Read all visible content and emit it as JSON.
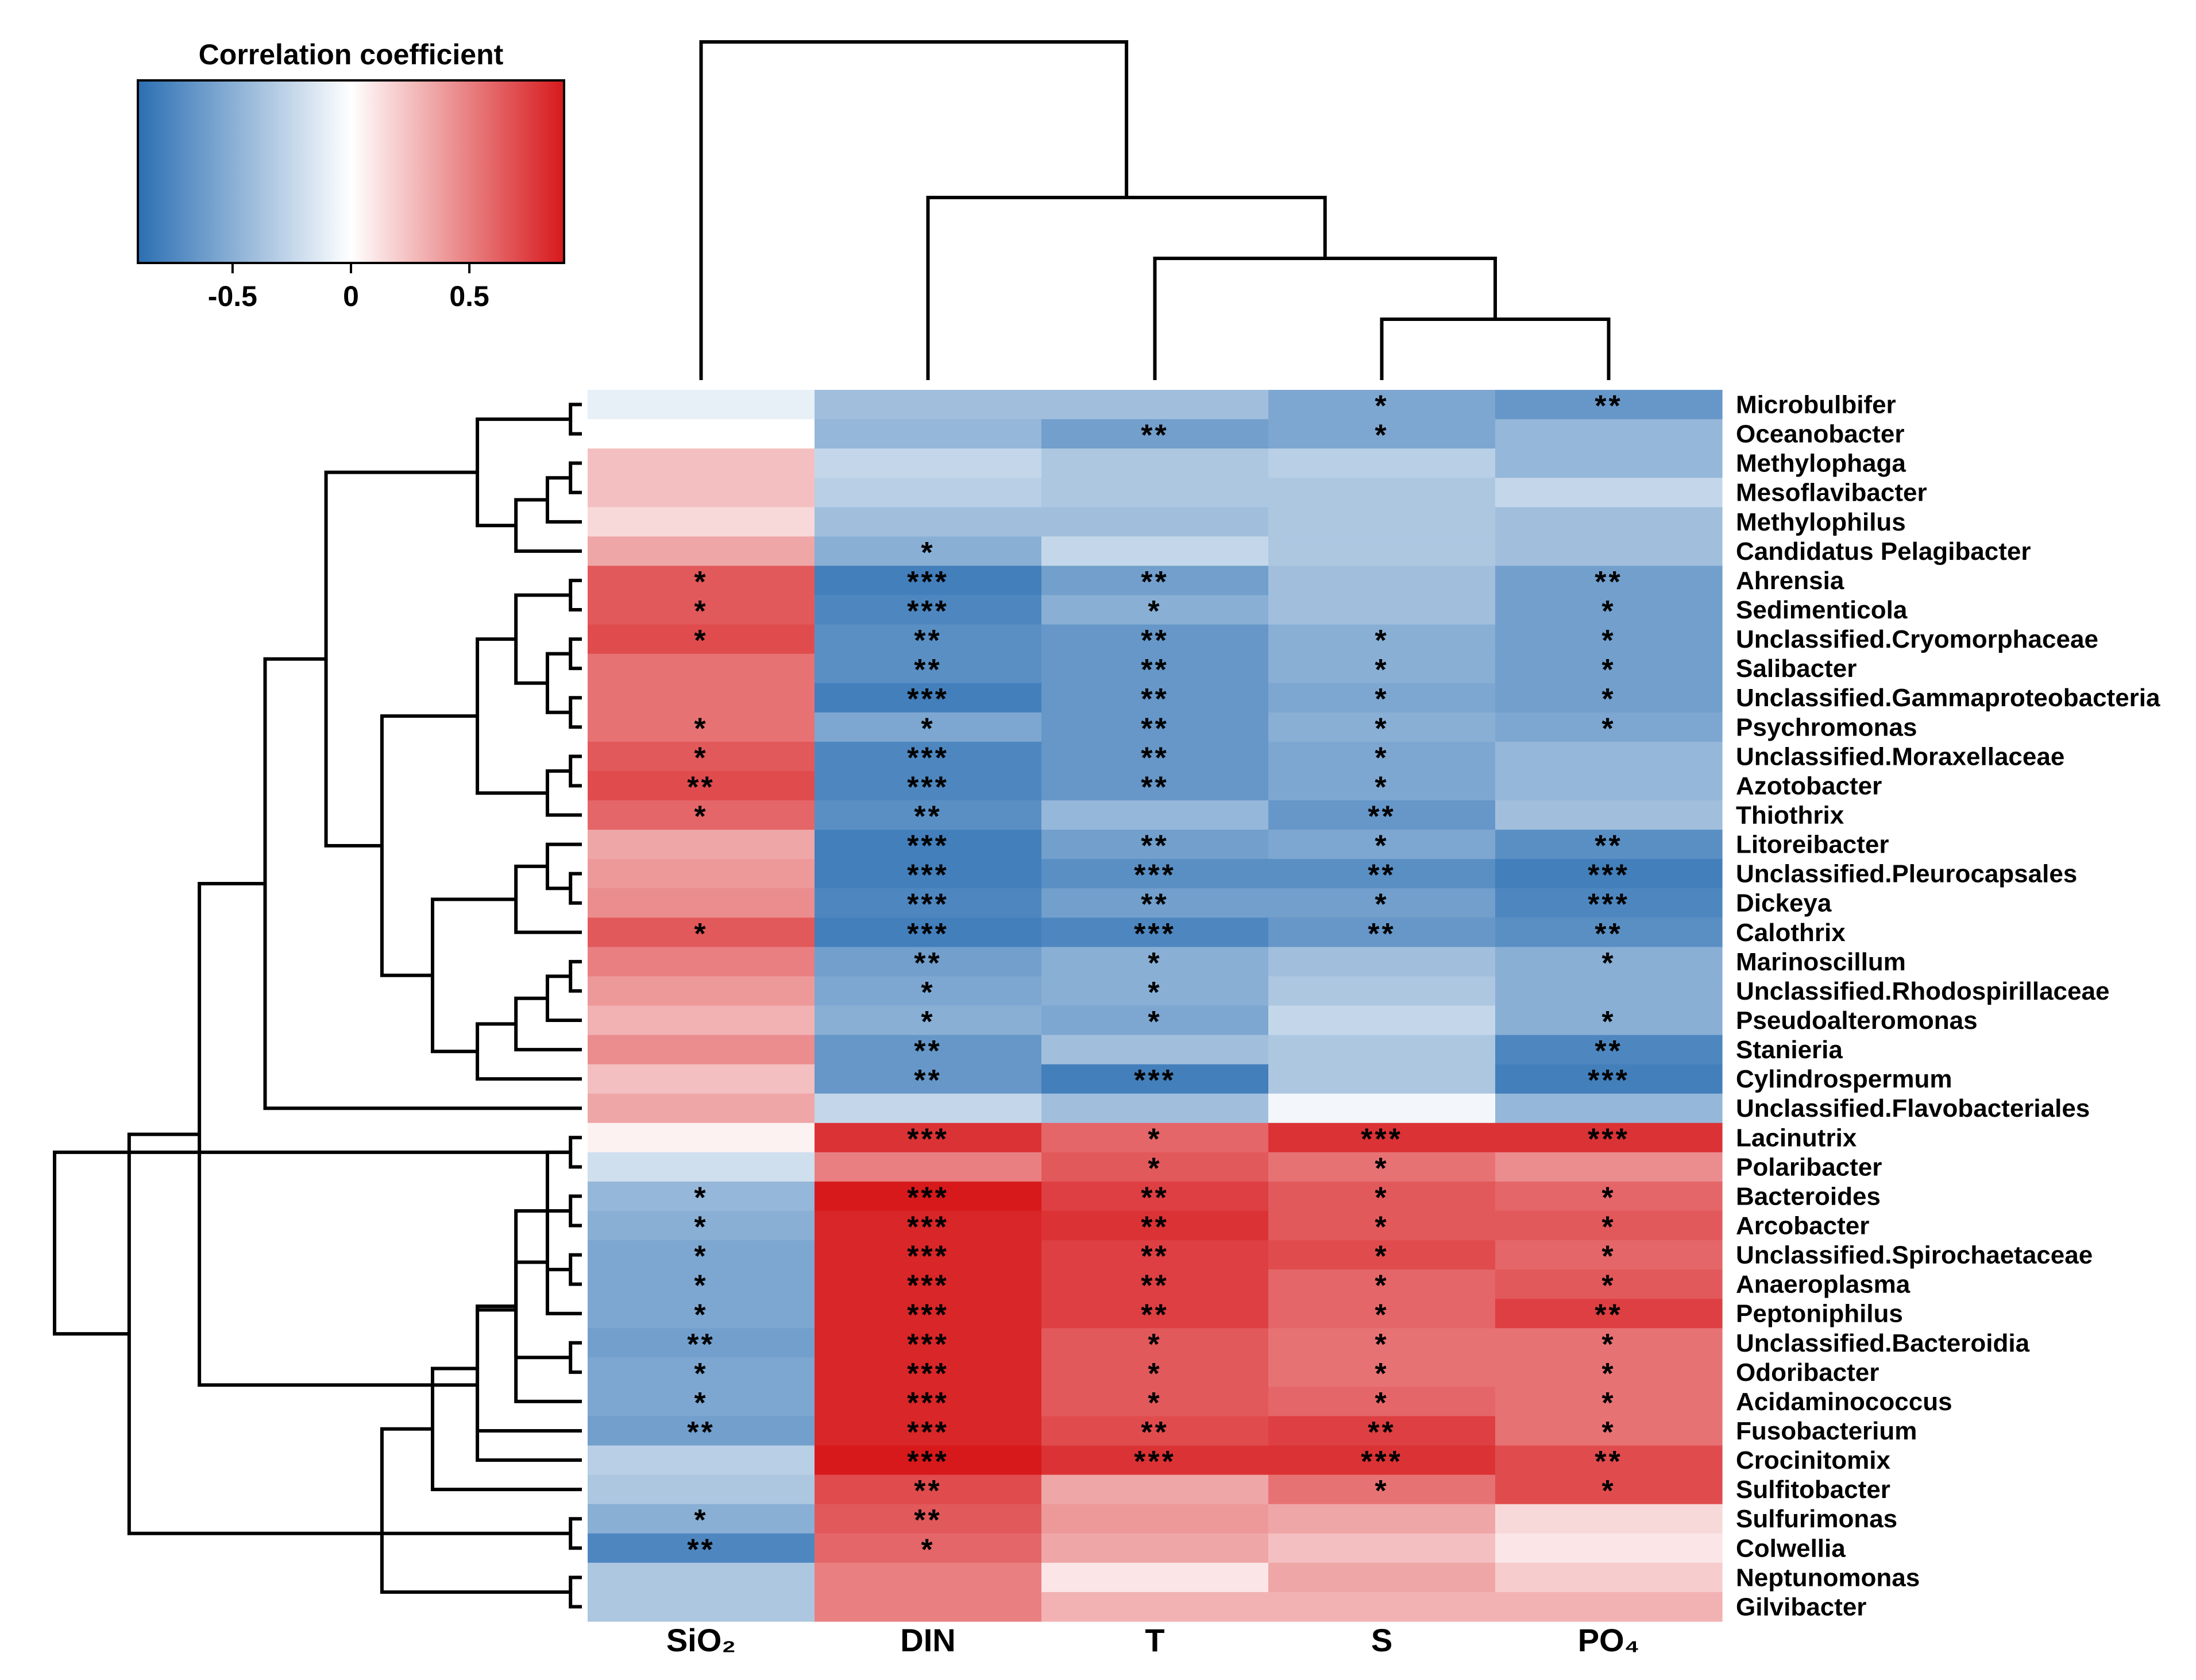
{
  "chart_data": {
    "type": "heatmap",
    "title": "",
    "xlabel": "",
    "ylabel": "",
    "legend": {
      "title": "Correlation coefficient",
      "placement": "top-left",
      "range": [
        -0.9,
        0.9
      ],
      "ticks": [
        "-0.5",
        "0",
        "0.5"
      ],
      "tick_values": [
        -0.5,
        0,
        0.5
      ],
      "colors": {
        "negative": "#2b6fb3",
        "zero": "#ffffff",
        "positive": "#d7191c"
      }
    },
    "columns": [
      "SiO₂",
      "DIN",
      "T",
      "S",
      "PO₄"
    ],
    "rows": [
      "Microbulbifer",
      "Oceanobacter",
      "Methylophaga",
      "Mesoflavibacter",
      "Methylophilus",
      "Candidatus Pelagibacter",
      "Ahrensia",
      "Sedimenticola",
      "Unclassified.Cryomorphaceae",
      "Salibacter",
      "Unclassified.Gammaproteobacteria",
      "Psychromonas",
      "Unclassified.Moraxellaceae",
      "Azotobacter",
      "Thiothrix",
      "Litoreibacter",
      "Unclassified.Pleurocapsales",
      "Dickeya",
      "Calothrix",
      "Marinoscillum",
      "Unclassified.Rhodospirillaceae",
      "Pseudoalteromonas",
      "Stanieria",
      "Cylindrospermum",
      "Unclassified.Flavobacteriales",
      "Lacinutrix",
      "Polaribacter",
      "Bacteroides",
      "Arcobacter",
      "Unclassified.Spirochaetaceae",
      "Anaeroplasma",
      "Peptoniphilus",
      "Unclassified.Bacteroidia",
      "Odoribacter",
      "Acidaminococcus",
      "Fusobacterium",
      "Crocinitomix",
      "Sulfitobacter",
      "Sulfurimonas",
      "Colwellia",
      "Neptunomonas",
      "Gilvibacter"
    ],
    "values": [
      [
        -0.1,
        -0.4,
        -0.4,
        -0.55,
        -0.65
      ],
      [
        0.0,
        -0.45,
        -0.6,
        -0.55,
        -0.45
      ],
      [
        0.25,
        -0.25,
        -0.35,
        -0.3,
        -0.45
      ],
      [
        0.25,
        -0.3,
        -0.35,
        -0.35,
        -0.25
      ],
      [
        0.15,
        -0.4,
        -0.4,
        -0.35,
        -0.4
      ],
      [
        0.35,
        -0.5,
        -0.25,
        -0.35,
        -0.4
      ],
      [
        0.65,
        -0.8,
        -0.6,
        -0.4,
        -0.6
      ],
      [
        0.65,
        -0.75,
        -0.5,
        -0.4,
        -0.6
      ],
      [
        0.7,
        -0.7,
        -0.65,
        -0.5,
        -0.6
      ],
      [
        0.55,
        -0.7,
        -0.65,
        -0.5,
        -0.6
      ],
      [
        0.55,
        -0.8,
        -0.65,
        -0.55,
        -0.6
      ],
      [
        0.55,
        -0.55,
        -0.65,
        -0.5,
        -0.55
      ],
      [
        0.65,
        -0.75,
        -0.65,
        -0.55,
        -0.45
      ],
      [
        0.7,
        -0.75,
        -0.65,
        -0.55,
        -0.45
      ],
      [
        0.6,
        -0.7,
        -0.45,
        -0.65,
        -0.4
      ],
      [
        0.35,
        -0.8,
        -0.6,
        -0.55,
        -0.7
      ],
      [
        0.4,
        -0.8,
        -0.7,
        -0.7,
        -0.8
      ],
      [
        0.45,
        -0.75,
        -0.6,
        -0.6,
        -0.75
      ],
      [
        0.65,
        -0.8,
        -0.75,
        -0.65,
        -0.7
      ],
      [
        0.5,
        -0.6,
        -0.5,
        -0.4,
        -0.5
      ],
      [
        0.4,
        -0.55,
        -0.5,
        -0.35,
        -0.5
      ],
      [
        0.3,
        -0.5,
        -0.55,
        -0.25,
        -0.5
      ],
      [
        0.45,
        -0.65,
        -0.4,
        -0.35,
        -0.75
      ],
      [
        0.25,
        -0.65,
        -0.8,
        -0.35,
        -0.8
      ],
      [
        0.35,
        -0.25,
        -0.4,
        -0.05,
        -0.45
      ],
      [
        0.05,
        0.8,
        0.6,
        0.8,
        0.8
      ],
      [
        -0.2,
        0.5,
        0.65,
        0.55,
        0.45
      ],
      [
        -0.45,
        0.9,
        0.75,
        0.65,
        0.6
      ],
      [
        -0.5,
        0.85,
        0.8,
        0.65,
        0.65
      ],
      [
        -0.55,
        0.85,
        0.75,
        0.7,
        0.6
      ],
      [
        -0.55,
        0.85,
        0.75,
        0.6,
        0.65
      ],
      [
        -0.55,
        0.85,
        0.75,
        0.6,
        0.75
      ],
      [
        -0.6,
        0.85,
        0.65,
        0.55,
        0.55
      ],
      [
        -0.55,
        0.85,
        0.65,
        0.55,
        0.55
      ],
      [
        -0.55,
        0.85,
        0.65,
        0.6,
        0.55
      ],
      [
        -0.6,
        0.85,
        0.7,
        0.75,
        0.55
      ],
      [
        -0.3,
        0.9,
        0.8,
        0.8,
        0.7
      ],
      [
        -0.35,
        0.7,
        0.35,
        0.55,
        0.7
      ],
      [
        -0.5,
        0.65,
        0.4,
        0.35,
        0.15
      ],
      [
        -0.75,
        0.6,
        0.35,
        0.25,
        0.1
      ],
      [
        -0.35,
        0.5,
        0.1,
        0.35,
        0.2
      ],
      [
        -0.35,
        0.5,
        0.3,
        0.3,
        0.3
      ]
    ],
    "significance": [
      [
        "",
        "",
        "",
        "*",
        "**"
      ],
      [
        "",
        "",
        "**",
        "*",
        ""
      ],
      [
        "",
        "",
        "",
        "",
        ""
      ],
      [
        "",
        "",
        "",
        "",
        ""
      ],
      [
        "",
        "",
        "",
        "",
        ""
      ],
      [
        "",
        "*",
        "",
        "",
        ""
      ],
      [
        "*",
        "***",
        "**",
        "",
        "**"
      ],
      [
        "*",
        "***",
        "*",
        "",
        "*"
      ],
      [
        "*",
        "**",
        "**",
        "*",
        "*"
      ],
      [
        "",
        "**",
        "**",
        "*",
        "*"
      ],
      [
        "",
        "***",
        "**",
        "*",
        "*"
      ],
      [
        "*",
        "*",
        "**",
        "*",
        "*"
      ],
      [
        "*",
        "***",
        "**",
        "*",
        ""
      ],
      [
        "**",
        "***",
        "**",
        "*",
        ""
      ],
      [
        "*",
        "**",
        "",
        "**",
        ""
      ],
      [
        "",
        "***",
        "**",
        "*",
        "**"
      ],
      [
        "",
        "***",
        "***",
        "**",
        "***"
      ],
      [
        "",
        "***",
        "**",
        "*",
        "***"
      ],
      [
        "*",
        "***",
        "***",
        "**",
        "**"
      ],
      [
        "",
        "**",
        "*",
        "",
        "*"
      ],
      [
        "",
        "*",
        "*",
        "",
        ""
      ],
      [
        "",
        "*",
        "*",
        "",
        "*"
      ],
      [
        "",
        "**",
        "",
        "",
        "**"
      ],
      [
        "",
        "**",
        "***",
        "",
        "***"
      ],
      [
        "",
        "",
        "",
        "",
        ""
      ],
      [
        "",
        "***",
        "*",
        "***",
        "***"
      ],
      [
        "",
        "",
        "*",
        "*",
        ""
      ],
      [
        "*",
        "***",
        "**",
        "*",
        "*"
      ],
      [
        "*",
        "***",
        "**",
        "*",
        "*"
      ],
      [
        "*",
        "***",
        "**",
        "*",
        "*"
      ],
      [
        "*",
        "***",
        "**",
        "*",
        "*"
      ],
      [
        "*",
        "***",
        "**",
        "*",
        "**"
      ],
      [
        "**",
        "***",
        "*",
        "*",
        "*"
      ],
      [
        "*",
        "***",
        "*",
        "*",
        "*"
      ],
      [
        "*",
        "***",
        "*",
        "*",
        "*"
      ],
      [
        "**",
        "***",
        "**",
        "**",
        "*"
      ],
      [
        "",
        "***",
        "***",
        "***",
        "**"
      ],
      [
        "",
        "**",
        "",
        "*",
        "*"
      ],
      [
        "*",
        "**",
        "",
        "",
        ""
      ],
      [
        "**",
        "*",
        "",
        "",
        ""
      ],
      [
        "",
        "",
        "",
        "",
        ""
      ],
      [
        "",
        "",
        "",
        "",
        ""
      ]
    ],
    "dendrogram_columns": {
      "leaf_order": [
        "SiO₂",
        "DIN",
        "T",
        "S",
        "PO₄"
      ],
      "merges": [
        [
          3,
          4
        ],
        [
          2,
          5
        ],
        [
          1,
          6
        ],
        [
          0,
          7
        ]
      ]
    },
    "dendrogram_rows": {
      "leaf_count": 42,
      "merges": [
        [
          0,
          1
        ],
        [
          2,
          3
        ],
        [
          43,
          4
        ],
        [
          44,
          5
        ],
        [
          42,
          45
        ],
        [
          6,
          7
        ],
        [
          8,
          9
        ],
        [
          10,
          11
        ],
        [
          48,
          49
        ],
        [
          47,
          50
        ],
        [
          12,
          13
        ],
        [
          52,
          14
        ],
        [
          51,
          53
        ],
        [
          16,
          17
        ],
        [
          15,
          55
        ],
        [
          56,
          18
        ],
        [
          19,
          20
        ],
        [
          58,
          21
        ],
        [
          59,
          22
        ],
        [
          60,
          23
        ],
        [
          57,
          61
        ],
        [
          54,
          62
        ],
        [
          46,
          63
        ],
        [
          64,
          24
        ],
        [
          25,
          26
        ],
        [
          27,
          28
        ],
        [
          29,
          30
        ],
        [
          67,
          31
        ],
        [
          66,
          68
        ],
        [
          32,
          33
        ],
        [
          70,
          34
        ],
        [
          69,
          71
        ],
        [
          72,
          35
        ],
        [
          73,
          36
        ],
        [
          74,
          37
        ],
        [
          65,
          75
        ],
        [
          38,
          39
        ],
        [
          40,
          41
        ],
        [
          77,
          78
        ],
        [
          76,
          79
        ],
        [
          66,
          80
        ]
      ]
    }
  }
}
